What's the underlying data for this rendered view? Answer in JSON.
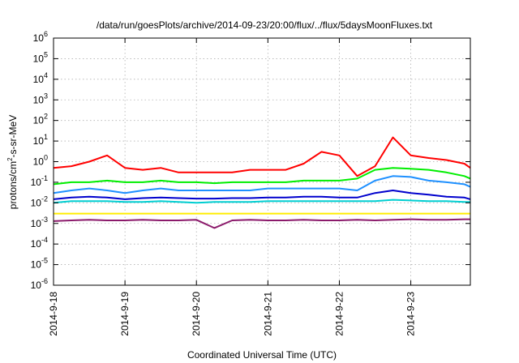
{
  "chart_data": {
    "type": "line",
    "title": "/data/run/goesPlots/archive/2014-09-23/20:00/flux/../flux/5daysMoonFluxes.txt",
    "xlabel": "Coordinated Universal Time (UTC)",
    "ylabel_parts": [
      "protons/cm",
      "2",
      "-s-sr-MeV"
    ],
    "xlim": [
      "2014-09-18",
      "2014-09-23T20:00"
    ],
    "ylim": [
      1e-06,
      1000000.0
    ],
    "yscale": "log",
    "grid": true,
    "x_ticks": [
      "2014-9-18",
      "2014-9-19",
      "2014-9-20",
      "2014-9-21",
      "2014-9-22",
      "2014-9-23"
    ],
    "y_ticks": [
      {
        "base": "10",
        "exp": "-6",
        "value": 1e-06
      },
      {
        "base": "10",
        "exp": "-5",
        "value": 1e-05
      },
      {
        "base": "10",
        "exp": "-4",
        "value": 0.0001
      },
      {
        "base": "10",
        "exp": "-3",
        "value": 0.001
      },
      {
        "base": "10",
        "exp": "-2",
        "value": 0.01
      },
      {
        "base": "10",
        "exp": "-1",
        "value": 0.1
      },
      {
        "base": "10",
        "exp": "0",
        "value": 1
      },
      {
        "base": "10",
        "exp": "1",
        "value": 10
      },
      {
        "base": "10",
        "exp": "2",
        "value": 100
      },
      {
        "base": "10",
        "exp": "3",
        "value": 1000
      },
      {
        "base": "10",
        "exp": "4",
        "value": 10000
      },
      {
        "base": "10",
        "exp": "5",
        "value": 100000
      },
      {
        "base": "10",
        "exp": "6",
        "value": 1000000
      }
    ],
    "x": [
      "2014-09-18T00:00",
      "2014-09-18T06:00",
      "2014-09-18T12:00",
      "2014-09-18T18:00",
      "2014-09-19T00:00",
      "2014-09-19T06:00",
      "2014-09-19T12:00",
      "2014-09-19T18:00",
      "2014-09-20T00:00",
      "2014-09-20T06:00",
      "2014-09-20T12:00",
      "2014-09-20T18:00",
      "2014-09-21T00:00",
      "2014-09-21T06:00",
      "2014-09-21T12:00",
      "2014-09-21T18:00",
      "2014-09-22T00:00",
      "2014-09-22T06:00",
      "2014-09-22T12:00",
      "2014-09-22T18:00",
      "2014-09-23T00:00",
      "2014-09-23T06:00",
      "2014-09-23T12:00",
      "2014-09-23T18:00",
      "2014-09-23T20:00"
    ],
    "series": [
      {
        "color": "#ff0000",
        "values": [
          0.5,
          0.6,
          1.0,
          2.0,
          0.5,
          0.4,
          0.5,
          0.3,
          0.3,
          0.3,
          0.3,
          0.4,
          0.4,
          0.4,
          0.8,
          3.0,
          2.0,
          0.2,
          0.6,
          15.0,
          2.0,
          1.5,
          1.2,
          0.8,
          0.5
        ]
      },
      {
        "color": "#00ee00",
        "values": [
          0.08,
          0.1,
          0.1,
          0.12,
          0.1,
          0.1,
          0.12,
          0.1,
          0.1,
          0.09,
          0.1,
          0.1,
          0.1,
          0.1,
          0.12,
          0.12,
          0.12,
          0.15,
          0.4,
          0.5,
          0.45,
          0.4,
          0.3,
          0.2,
          0.15
        ]
      },
      {
        "color": "#1e90ff",
        "values": [
          0.03,
          0.04,
          0.05,
          0.04,
          0.03,
          0.04,
          0.05,
          0.04,
          0.04,
          0.04,
          0.04,
          0.04,
          0.05,
          0.05,
          0.05,
          0.05,
          0.05,
          0.04,
          0.12,
          0.2,
          0.18,
          0.12,
          0.1,
          0.08,
          0.06
        ]
      },
      {
        "color": "#0000cd",
        "values": [
          0.015,
          0.018,
          0.02,
          0.018,
          0.015,
          0.017,
          0.018,
          0.017,
          0.016,
          0.016,
          0.017,
          0.017,
          0.018,
          0.018,
          0.02,
          0.02,
          0.018,
          0.018,
          0.03,
          0.04,
          0.03,
          0.025,
          0.02,
          0.018,
          0.015
        ]
      },
      {
        "color": "#00ced1",
        "values": [
          0.01,
          0.012,
          0.012,
          0.012,
          0.011,
          0.011,
          0.012,
          0.011,
          0.01,
          0.011,
          0.011,
          0.011,
          0.012,
          0.012,
          0.012,
          0.012,
          0.012,
          0.012,
          0.012,
          0.014,
          0.013,
          0.012,
          0.012,
          0.011,
          0.011
        ]
      },
      {
        "color": "#ffee00",
        "values": [
          0.003,
          0.003,
          0.003,
          0.003,
          0.003,
          0.003,
          0.003,
          0.003,
          0.003,
          0.003,
          0.003,
          0.003,
          0.003,
          0.003,
          0.003,
          0.003,
          0.003,
          0.003,
          0.003,
          0.003,
          0.003,
          0.003,
          0.003,
          0.003,
          0.003
        ]
      },
      {
        "color": "#8b1a6b",
        "values": [
          0.0013,
          0.0014,
          0.0015,
          0.0014,
          0.0014,
          0.0015,
          0.0014,
          0.0014,
          0.0015,
          0.0006,
          0.0014,
          0.0015,
          0.0014,
          0.0014,
          0.0015,
          0.0014,
          0.0014,
          0.0015,
          0.0014,
          0.0015,
          0.0016,
          0.0015,
          0.0015,
          0.0016,
          0.0016
        ]
      }
    ]
  }
}
